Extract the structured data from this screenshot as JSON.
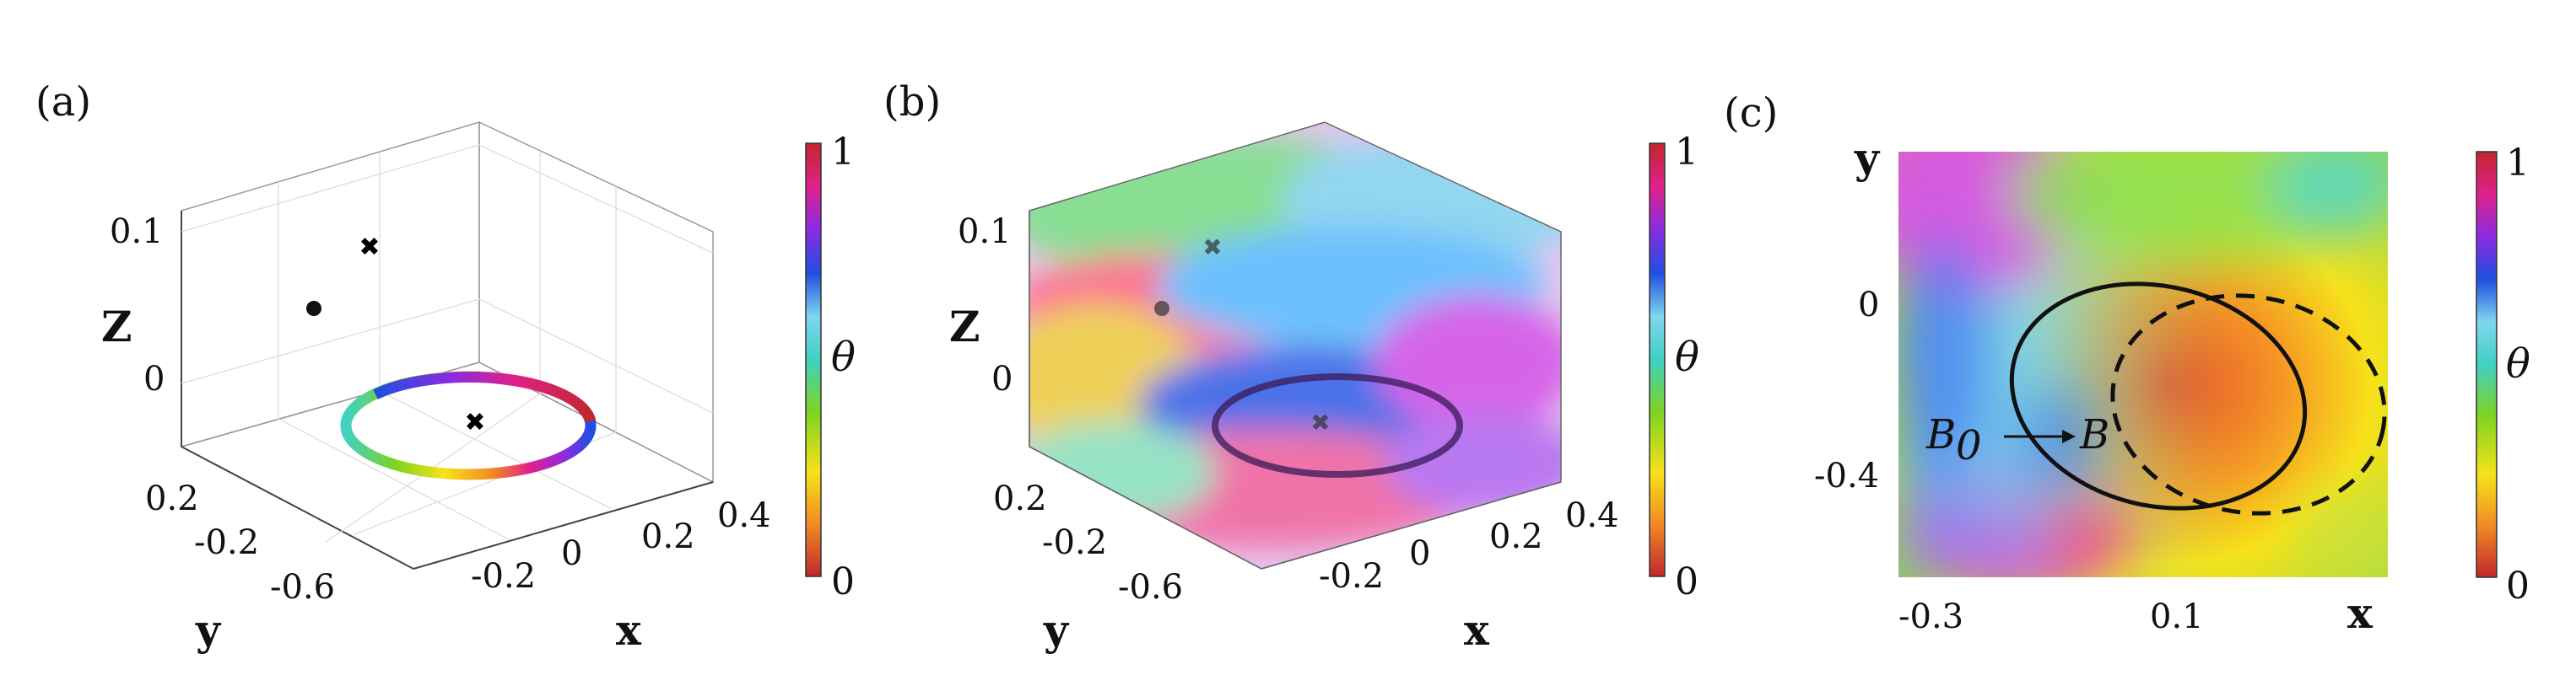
{
  "panels": [
    {
      "label": "(a)",
      "ztick_labels": [
        "0.1",
        "0"
      ],
      "ytick_labels": [
        "0.2",
        "-0.2",
        "-0.6"
      ],
      "xtick_labels": [
        "-0.2",
        "0",
        "0.2",
        "0.4"
      ],
      "zlabel": "Z",
      "ylabel": "y",
      "xlabel": "x",
      "colorbar": {
        "label": "θ",
        "min_label": "0",
        "max_label": "1"
      }
    },
    {
      "label": "(b)",
      "ztick_labels": [
        "0.1",
        "0"
      ],
      "ytick_labels": [
        "0.2",
        "-0.2",
        "-0.6"
      ],
      "xtick_labels": [
        "-0.2",
        "0",
        "0.2",
        "0.4"
      ],
      "zlabel": "Z",
      "ylabel": "y",
      "xlabel": "x",
      "colorbar": {
        "label": "θ",
        "min_label": "0",
        "max_label": "1"
      }
    },
    {
      "label": "(c)",
      "xtick_labels": [
        "-0.3",
        "0.1"
      ],
      "ytick_labels": [
        "0",
        "-0.4"
      ],
      "xlabel": "x",
      "ylabel": "y",
      "annotation_b0": "B",
      "annotation_b0_sub": "0",
      "annotation_b": "B",
      "colorbar": {
        "label": "θ",
        "min_label": "0",
        "max_label": "1"
      }
    }
  ],
  "colormap_stops": [
    "#c1272d",
    "#f08a24",
    "#f7e21a",
    "#7ed321",
    "#3fd1c2",
    "#7fd6ef",
    "#1f4fe0",
    "#8a2be2",
    "#e0218a",
    "#c1272d"
  ]
}
